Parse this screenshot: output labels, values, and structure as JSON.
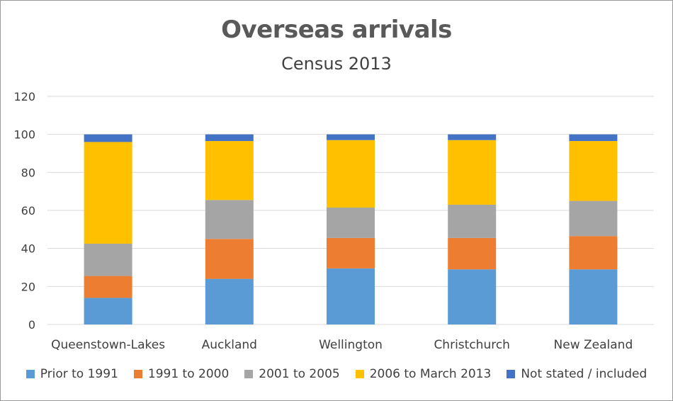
{
  "chart_data": {
    "type": "bar",
    "stacked": true,
    "title": "Overseas arrivals",
    "subtitle": "Census 2013",
    "categories": [
      "Queenstown-Lakes",
      "Auckland",
      "Wellington",
      "Christchurch",
      "New Zealand"
    ],
    "series": [
      {
        "name": "Prior to 1991",
        "color": "#5B9BD5",
        "values": [
          14,
          24,
          29.5,
          29,
          29
        ]
      },
      {
        "name": "1991 to 2000",
        "color": "#ED7D31",
        "values": [
          11.5,
          21,
          16,
          16.5,
          17.5
        ]
      },
      {
        "name": "2001 to 2005",
        "color": "#A5A5A5",
        "values": [
          17,
          20.5,
          16,
          17.5,
          18.5
        ]
      },
      {
        "name": "2006 to March 2013",
        "color": "#FFC000",
        "values": [
          53.5,
          31,
          35.5,
          34,
          31.5
        ]
      },
      {
        "name": "Not stated / included",
        "color": "#4472C4",
        "values": [
          4,
          3.5,
          3,
          3,
          3.5
        ]
      }
    ],
    "ylim": [
      0,
      120
    ],
    "yticks": [
      0,
      20,
      40,
      60,
      80,
      100,
      120
    ],
    "grid": true,
    "legend_position": "bottom"
  }
}
